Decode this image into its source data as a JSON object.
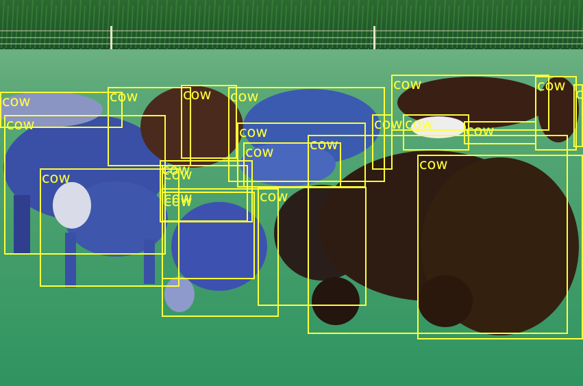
{
  "image": {
    "description_colors": {
      "corn": "#1f5a2a",
      "grass": "#3a9a63",
      "box": "#ffff3a"
    }
  },
  "detections": [
    {
      "label": "cow"
    },
    {
      "label": "cow"
    },
    {
      "label": "cow"
    },
    {
      "label": "cow"
    },
    {
      "label": "cow"
    },
    {
      "label": "cow"
    },
    {
      "label": "cow"
    },
    {
      "label": "cow"
    },
    {
      "label": "cow"
    },
    {
      "label": "cow"
    },
    {
      "label": "cow"
    },
    {
      "label": "cow"
    },
    {
      "label": "cow"
    },
    {
      "label": "cow"
    },
    {
      "label": "cow"
    },
    {
      "label": "cow"
    },
    {
      "label": "cow"
    },
    {
      "label": "cow"
    },
    {
      "label": "cow"
    },
    {
      "label": "cow"
    },
    {
      "label": "cow"
    }
  ]
}
